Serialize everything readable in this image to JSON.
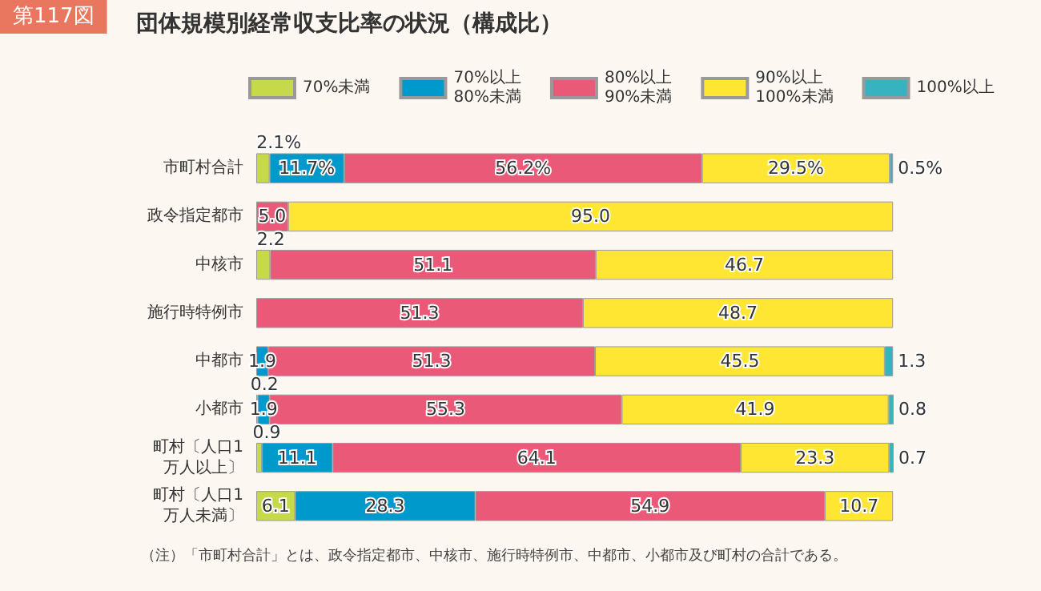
{
  "chart_data": {
    "type": "bar",
    "orientation": "horizontal",
    "stacked": true,
    "title": "団体規模別経常収支比率の状況（構成比）",
    "subtitle": "第117図",
    "categories": [
      "市町村合計",
      "政令指定都市",
      "中核市",
      "施行時特例市",
      "中都市",
      "小都市",
      "町村〔人口1万人以上〕",
      "町村〔人口1万人未満〕"
    ],
    "series": [
      {
        "name": "70%未満",
        "color": "#c5d94a",
        "values": [
          2.1,
          null,
          2.2,
          null,
          null,
          0.2,
          0.9,
          6.1
        ],
        "value_labels": [
          "2.1%",
          null,
          "2.2",
          null,
          null,
          "0.2",
          "0.9",
          "6.1"
        ]
      },
      {
        "name": "70%以上\n80%未満",
        "color": "#0099cc",
        "values": [
          11.7,
          null,
          null,
          null,
          1.9,
          1.9,
          11.1,
          28.3
        ],
        "value_labels": [
          "11.7%",
          null,
          null,
          null,
          "1.9",
          "1.9",
          "11.1",
          "28.3"
        ]
      },
      {
        "name": "80%以上\n90%未満",
        "color": "#ea5a78",
        "values": [
          56.2,
          5.0,
          51.1,
          51.3,
          51.3,
          55.3,
          64.1,
          54.9
        ],
        "value_labels": [
          "56.2%",
          "5.0",
          "51.1",
          "51.3",
          "51.3",
          "55.3",
          "64.1",
          "54.9"
        ]
      },
      {
        "name": "90%以上\n100%未満",
        "color": "#ffe633",
        "values": [
          29.5,
          95.0,
          46.7,
          48.7,
          45.5,
          41.9,
          23.3,
          10.7
        ],
        "value_labels": [
          "29.5%",
          "95.0",
          "46.7",
          "48.7",
          "45.5",
          "41.9",
          "23.3",
          "10.7"
        ]
      },
      {
        "name": "100%以上",
        "color": "#36b3bf",
        "values": [
          0.5,
          null,
          null,
          null,
          1.3,
          0.8,
          0.7,
          null
        ],
        "value_labels": [
          "0.5%",
          null,
          null,
          null,
          "1.3",
          "0.8",
          "0.7",
          null
        ]
      }
    ],
    "legend": "top",
    "annotations": [
      "（注）「市町村合計」とは、政令指定都市、中核市、施行時特例市、中都市、小都市及び町村の合計である。"
    ]
  }
}
